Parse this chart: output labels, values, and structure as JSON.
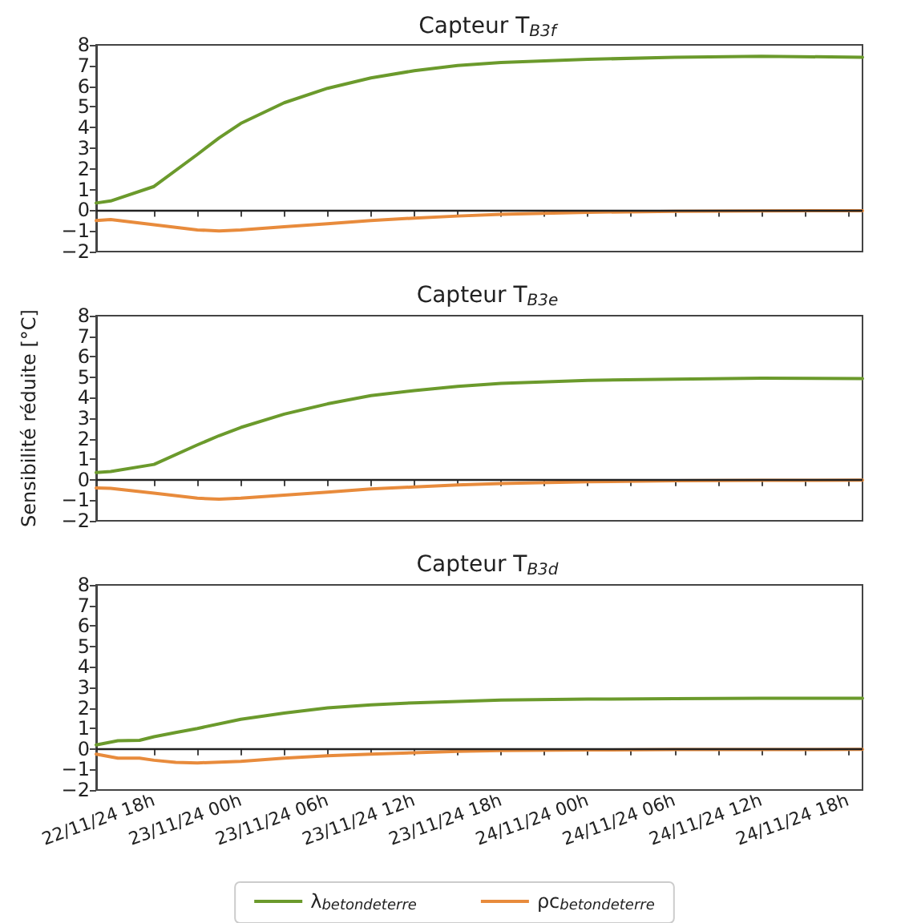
{
  "chart_data": [
    {
      "type": "line",
      "title": "Capteur T$_{B3f}$",
      "tick_labels": "y",
      "legend": false,
      "grid": false,
      "marker": "none",
      "line_style": "solid",
      "x": [
        "--11-22T14:00",
        "--11-22T15:00",
        "--11-22T18:00",
        "--11-22T21:00",
        "--11-22T22:30",
        "--11-23T00:00",
        "--11-23T03:00",
        "--11-23T06:00",
        "--11-23T09:00",
        "--11-23T12:00",
        "--11-23T15:00",
        "--11-23T18:00",
        "--11-24T00:00",
        "--11-24T06:00",
        "--11-24T12:00",
        "--11-24T19:00"
      ],
      "series": [
        {
          "color": "#6b9a2c",
          "values": [
            0.35,
            0.45,
            1.15,
            2.7,
            3.5,
            4.2,
            5.2,
            5.9,
            6.4,
            6.75,
            7.0,
            7.15,
            7.3,
            7.4,
            7.45,
            7.4
          ]
        },
        {
          "color": "#e88b3c",
          "values": [
            -0.5,
            -0.45,
            -0.7,
            -0.95,
            -1.0,
            -0.95,
            -0.8,
            -0.65,
            -0.5,
            -0.38,
            -0.28,
            -0.2,
            -0.1,
            -0.05,
            -0.03,
            -0.02
          ]
        }
      ],
      "xlim": [
        "--11-22T14:00",
        "--11-24T19:00"
      ],
      "xticks": [
        {
          "value": "--11-22T18:00",
          "label": null
        },
        {
          "value": "--11-22T21:00",
          "label": null
        },
        {
          "value": "--11-23T00:00",
          "label": null
        },
        {
          "value": "--11-23T03:00",
          "label": null
        },
        {
          "value": "--11-23T06:00",
          "label": null
        },
        {
          "value": "--11-23T09:00",
          "label": null
        },
        {
          "value": "--11-23T12:00",
          "label": null
        },
        {
          "value": "--11-23T15:00",
          "label": null
        },
        {
          "value": "--11-23T18:00",
          "label": null
        },
        {
          "value": "--11-23T21:00",
          "label": null
        },
        {
          "value": "--11-24T00:00",
          "label": null
        },
        {
          "value": "--11-24T03:00",
          "label": null
        },
        {
          "value": "--11-24T06:00",
          "label": null
        },
        {
          "value": "--11-24T09:00",
          "label": null
        },
        {
          "value": "--11-24T12:00",
          "label": null
        },
        {
          "value": "--11-24T15:00",
          "label": null
        },
        {
          "value": "--11-24T18:00",
          "label": null
        }
      ],
      "ylim": [
        -2,
        8
      ],
      "yticks": [
        -2,
        -1,
        0,
        1,
        2,
        3,
        4,
        5,
        6,
        7,
        8
      ],
      "ref_lines": [
        {
          "axis": "y",
          "value": 0,
          "color": "#222222"
        }
      ]
    },
    {
      "type": "line",
      "title": "Capteur T$_{B3e}$",
      "ylabel": "Sensibilité réduite [°C]",
      "tick_labels": "y",
      "legend": false,
      "grid": false,
      "marker": "none",
      "line_style": "solid",
      "x": [
        "--11-22T14:00",
        "--11-22T15:00",
        "--11-22T18:00",
        "--11-22T21:00",
        "--11-22T22:30",
        "--11-23T00:00",
        "--11-23T03:00",
        "--11-23T06:00",
        "--11-23T09:00",
        "--11-23T12:00",
        "--11-23T15:00",
        "--11-23T18:00",
        "--11-24T00:00",
        "--11-24T06:00",
        "--11-24T12:00",
        "--11-24T19:00"
      ],
      "series": [
        {
          "color": "#6b9a2c",
          "values": [
            0.35,
            0.4,
            0.75,
            1.7,
            2.15,
            2.55,
            3.2,
            3.7,
            4.1,
            4.35,
            4.55,
            4.7,
            4.85,
            4.9,
            4.95,
            4.93
          ]
        },
        {
          "color": "#e88b3c",
          "values": [
            -0.4,
            -0.42,
            -0.65,
            -0.9,
            -0.95,
            -0.9,
            -0.75,
            -0.6,
            -0.45,
            -0.35,
            -0.25,
            -0.18,
            -0.1,
            -0.05,
            -0.03,
            -0.02
          ]
        }
      ],
      "xlim": [
        "--11-22T14:00",
        "--11-24T19:00"
      ],
      "xticks": [
        {
          "value": "--11-22T18:00",
          "label": null
        },
        {
          "value": "--11-22T21:00",
          "label": null
        },
        {
          "value": "--11-23T00:00",
          "label": null
        },
        {
          "value": "--11-23T03:00",
          "label": null
        },
        {
          "value": "--11-23T06:00",
          "label": null
        },
        {
          "value": "--11-23T09:00",
          "label": null
        },
        {
          "value": "--11-23T12:00",
          "label": null
        },
        {
          "value": "--11-23T15:00",
          "label": null
        },
        {
          "value": "--11-23T18:00",
          "label": null
        },
        {
          "value": "--11-23T21:00",
          "label": null
        },
        {
          "value": "--11-24T00:00",
          "label": null
        },
        {
          "value": "--11-24T03:00",
          "label": null
        },
        {
          "value": "--11-24T06:00",
          "label": null
        },
        {
          "value": "--11-24T09:00",
          "label": null
        },
        {
          "value": "--11-24T12:00",
          "label": null
        },
        {
          "value": "--11-24T15:00",
          "label": null
        },
        {
          "value": "--11-24T18:00",
          "label": null
        }
      ],
      "ylim": [
        -2,
        8
      ],
      "yticks": [
        -2,
        -1,
        0,
        1,
        2,
        3,
        4,
        5,
        6,
        7,
        8
      ],
      "ref_lines": [
        {
          "axis": "y",
          "value": 0,
          "color": "#222222"
        }
      ]
    },
    {
      "type": "line",
      "title": "Capteur T$_{B3d}$",
      "legend": "bottom",
      "grid": false,
      "marker": "none",
      "line_style": "solid",
      "x": [
        "--11-22T14:00",
        "--11-22T15:30",
        "--11-22T17:00",
        "--11-22T18:00",
        "--11-22T19:30",
        "--11-22T21:00",
        "--11-23T00:00",
        "--11-23T03:00",
        "--11-23T06:00",
        "--11-23T09:00",
        "--11-23T12:00",
        "--11-23T15:00",
        "--11-23T18:00",
        "--11-24T00:00",
        "--11-24T06:00",
        "--11-24T12:00",
        "--11-24T19:00"
      ],
      "series": [
        {
          "name": "λ$_{betondeterre}$",
          "color": "#6b9a2c",
          "values": [
            0.2,
            0.4,
            0.42,
            0.6,
            0.8,
            1.0,
            1.45,
            1.75,
            2.0,
            2.15,
            2.25,
            2.32,
            2.38,
            2.43,
            2.45,
            2.47,
            2.47
          ]
        },
        {
          "name": "ρc$_{betondeterre}$",
          "color": "#e88b3c",
          "values": [
            -0.25,
            -0.45,
            -0.45,
            -0.55,
            -0.65,
            -0.68,
            -0.6,
            -0.45,
            -0.33,
            -0.25,
            -0.18,
            -0.12,
            -0.08,
            -0.05,
            -0.03,
            -0.03,
            -0.02
          ]
        }
      ],
      "xlim": [
        "--11-22T14:00",
        "--11-24T19:00"
      ],
      "xticks": [
        {
          "value": "--11-22T18:00",
          "label": "22/11/24 18h"
        },
        {
          "value": "--11-22T21:00",
          "label": null
        },
        {
          "value": "--11-23T00:00",
          "label": "23/11/24 00h"
        },
        {
          "value": "--11-23T03:00",
          "label": null
        },
        {
          "value": "--11-23T06:00",
          "label": "23/11/24 06h"
        },
        {
          "value": "--11-23T09:00",
          "label": null
        },
        {
          "value": "--11-23T12:00",
          "label": "23/11/24 12h"
        },
        {
          "value": "--11-23T15:00",
          "label": null
        },
        {
          "value": "--11-23T18:00",
          "label": "23/11/24 18h"
        },
        {
          "value": "--11-23T21:00",
          "label": null
        },
        {
          "value": "--11-24T00:00",
          "label": "24/11/24 00h"
        },
        {
          "value": "--11-24T03:00",
          "label": null
        },
        {
          "value": "--11-24T06:00",
          "label": "24/11/24 06h"
        },
        {
          "value": "--11-24T09:00",
          "label": null
        },
        {
          "value": "--11-24T12:00",
          "label": "24/11/24 12h"
        },
        {
          "value": "--11-24T15:00",
          "label": null
        },
        {
          "value": "--11-24T18:00",
          "label": "24/11/24 18h"
        }
      ],
      "ylim": [
        -2,
        8
      ],
      "yticks": [
        -2,
        -1,
        0,
        1,
        2,
        3,
        4,
        5,
        6,
        7,
        8
      ],
      "ref_lines": [
        {
          "axis": "y",
          "value": 0,
          "color": "#222222"
        }
      ]
    }
  ]
}
